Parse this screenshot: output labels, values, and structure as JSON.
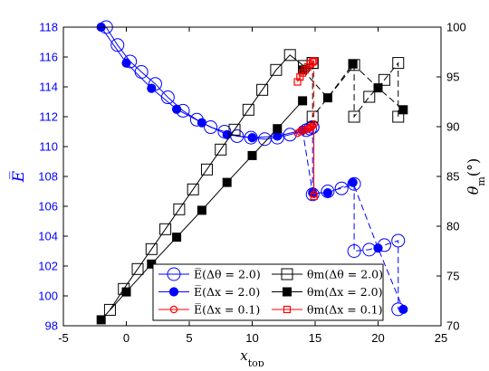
{
  "chart_data": {
    "type": "scatter",
    "title": "",
    "xlabel": "x_top",
    "ylabel_left": "E̅",
    "ylabel_right": "θ_m(°)",
    "xlim": [
      -5,
      25
    ],
    "ylim_left": [
      98,
      118
    ],
    "ylim_right": [
      70,
      100
    ],
    "x_ticks": [
      -5,
      0,
      5,
      10,
      15,
      20,
      25
    ],
    "y_left_ticks": [
      98,
      100,
      102,
      104,
      106,
      108,
      110,
      112,
      114,
      116,
      118
    ],
    "y_right_ticks": [
      70,
      75,
      80,
      85,
      90,
      95,
      100
    ],
    "grid": false,
    "legend_position": "bottom-center",
    "colors": {
      "blue": "#0000ff",
      "black": "#000000",
      "red": "#ff0000"
    },
    "series": [
      {
        "name": "E̅(Δθ = 2.0)",
        "axis": "left",
        "color": "#0000ff",
        "marker": "open-circle",
        "line": "solid",
        "x": [
          -1.6,
          -0.7,
          0.3,
          1.2,
          2.3,
          3.3,
          4.5,
          5.6,
          6.7,
          7.8,
          8.8,
          9.9,
          11.0,
          12.0,
          13.0,
          14.3,
          14.6,
          14.8
        ],
        "y": [
          118.0,
          116.8,
          115.7,
          115.0,
          114.2,
          113.3,
          112.4,
          111.8,
          111.3,
          111.0,
          110.7,
          110.6,
          110.5,
          110.6,
          110.8,
          111.1,
          111.2,
          111.3
        ]
      },
      {
        "name": "E̅(Δx = 2.0)",
        "axis": "left",
        "color": "#0000ff",
        "marker": "filled-circle",
        "line": "solid",
        "x": [
          -2,
          0,
          2,
          4,
          6,
          8,
          10,
          12,
          14
        ],
        "y": [
          118.0,
          115.6,
          113.9,
          112.5,
          111.6,
          110.8,
          110.6,
          110.7,
          111.1
        ]
      },
      {
        "name": "E̅(Δx = 2.0)",
        "axis": "left",
        "color": "#0000ff",
        "marker": "filled-circle",
        "line": "dashed",
        "x": [
          14,
          14.8,
          16,
          18,
          20,
          22
        ],
        "y": [
          111.1,
          106.9,
          106.9,
          107.6,
          103.2,
          99.1
        ]
      },
      {
        "name": "E̅(Δθ = 2.0)",
        "axis": "left",
        "color": "#0000ff",
        "marker": "open-circle",
        "line": "dashed",
        "x": [
          14.8,
          14.8,
          16.0,
          17.1,
          18.1,
          18.1,
          19.3,
          20.5,
          21.6,
          21.6
        ],
        "y": [
          111.3,
          106.8,
          107.0,
          107.2,
          107.5,
          103.0,
          103.1,
          103.4,
          103.7,
          99.1
        ]
      },
      {
        "name": "E̅(Δx = 0.1)",
        "axis": "left",
        "color": "#ff0000",
        "marker": "small-open-circle",
        "line": "solid",
        "x": [
          13.6,
          13.8,
          14.0,
          14.2,
          14.4,
          14.5,
          14.6,
          14.7,
          14.8,
          14.9
        ],
        "y": [
          110.9,
          111.0,
          111.1,
          111.1,
          111.2,
          111.2,
          111.3,
          111.3,
          111.4,
          111.5
        ]
      },
      {
        "name": "E̅(Δx = 0.1)",
        "axis": "left",
        "color": "#ff0000",
        "marker": "small-open-circle",
        "line": "dashed",
        "x": [
          14.9,
          14.9
        ],
        "y": [
          111.5,
          106.8
        ]
      },
      {
        "name": "θm(Δθ = 2.0)",
        "axis": "right",
        "color": "#000000",
        "marker": "open-square",
        "line": "solid",
        "x": [
          -1.3,
          -0.2,
          0.9,
          2.0,
          3.1,
          4.2,
          5.3,
          6.4,
          7.5,
          8.6,
          9.7,
          10.8,
          11.9,
          13.0,
          14.1,
          14.8
        ],
        "y": [
          71.6,
          73.7,
          75.7,
          77.7,
          79.7,
          81.7,
          83.7,
          85.7,
          87.7,
          89.7,
          91.7,
          93.7,
          95.7,
          97.2,
          96.1,
          96.4
        ]
      },
      {
        "name": "θm(Δθ = 2.0)",
        "axis": "right",
        "color": "#000000",
        "marker": "open-square",
        "line": "dashed",
        "x": [
          14.8,
          14.8,
          18.1,
          18.1,
          19.3,
          20.5,
          21.6,
          21.6
        ],
        "y": [
          96.4,
          91.0,
          96.2,
          91.0,
          93.0,
          94.7,
          96.4,
          91.0
        ]
      },
      {
        "name": "θm(Δx = 2.0)",
        "axis": "right",
        "color": "#000000",
        "marker": "filled-square",
        "line": "solid",
        "x": [
          -2,
          0,
          2,
          4,
          6,
          8,
          10,
          12,
          14
        ],
        "y": [
          70.6,
          73.4,
          76.2,
          78.9,
          81.6,
          84.4,
          87.1,
          89.8,
          92.6
        ]
      },
      {
        "name": "θm(Δx = 2.0)",
        "axis": "right",
        "color": "#000000",
        "marker": "filled-square",
        "line": "dashed",
        "x": [
          14,
          16,
          18,
          20,
          22
        ],
        "y": [
          95.7,
          92.9,
          96.3,
          93.9,
          91.7
        ]
      },
      {
        "name": "θm(Δx = 0.1)",
        "axis": "right",
        "color": "#ff0000",
        "marker": "small-open-square",
        "line": "solid",
        "x": [
          13.6,
          13.8,
          14.0,
          14.2,
          14.4,
          14.6,
          14.8,
          14.9
        ],
        "y": [
          94.5,
          95.0,
          95.4,
          95.7,
          96.0,
          96.3,
          96.5,
          96.6
        ]
      },
      {
        "name": "θm(Δx = 0.1)",
        "axis": "right",
        "color": "#ff0000",
        "marker": "small-open-square",
        "line": "dashed",
        "x": [
          14.9,
          14.9
        ],
        "y": [
          96.6,
          83.0
        ]
      }
    ],
    "legend": [
      {
        "label": "E̅(Δθ = 2.0)",
        "color": "#0000ff",
        "marker": "open-circle"
      },
      {
        "label": "θm(Δθ = 2.0)",
        "color": "#000000",
        "marker": "open-square"
      },
      {
        "label": "E̅(Δx = 2.0)",
        "color": "#0000ff",
        "marker": "filled-circle"
      },
      {
        "label": "θm(Δx = 2.0)",
        "color": "#000000",
        "marker": "filled-square"
      },
      {
        "label": "E̅(Δx = 0.1)",
        "color": "#ff0000",
        "marker": "small-open-circle"
      },
      {
        "label": "θm(Δx = 0.1)",
        "color": "#ff0000",
        "marker": "small-open-square"
      }
    ]
  }
}
